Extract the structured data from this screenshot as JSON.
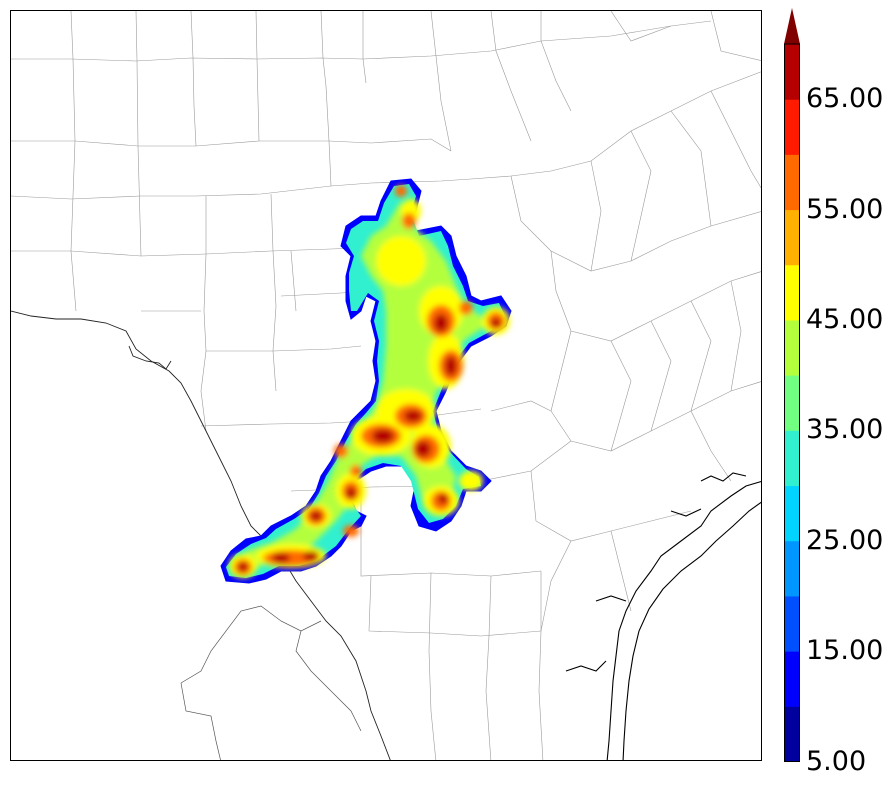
{
  "colorbar": {
    "tick_labels": [
      "65.00",
      "55.00",
      "45.00",
      "35.00",
      "25.00",
      "15.00",
      "5.00"
    ],
    "tick_values": [
      65,
      55,
      45,
      35,
      25,
      15,
      5
    ],
    "min": 5,
    "max": 70,
    "extend": "max",
    "colors": [
      "#00009f",
      "#0000ff",
      "#0050ff",
      "#0096ff",
      "#00d4ff",
      "#30f0d0",
      "#70ff80",
      "#b4ff3c",
      "#ffff00",
      "#ffb000",
      "#ff6a00",
      "#ff1a00",
      "#b40000",
      "#800000"
    ]
  },
  "map": {
    "features": [
      "county-boundaries",
      "state-border",
      "rio-grande",
      "gulf-coastline"
    ],
    "field": "radar-reflectivity-swath"
  }
}
